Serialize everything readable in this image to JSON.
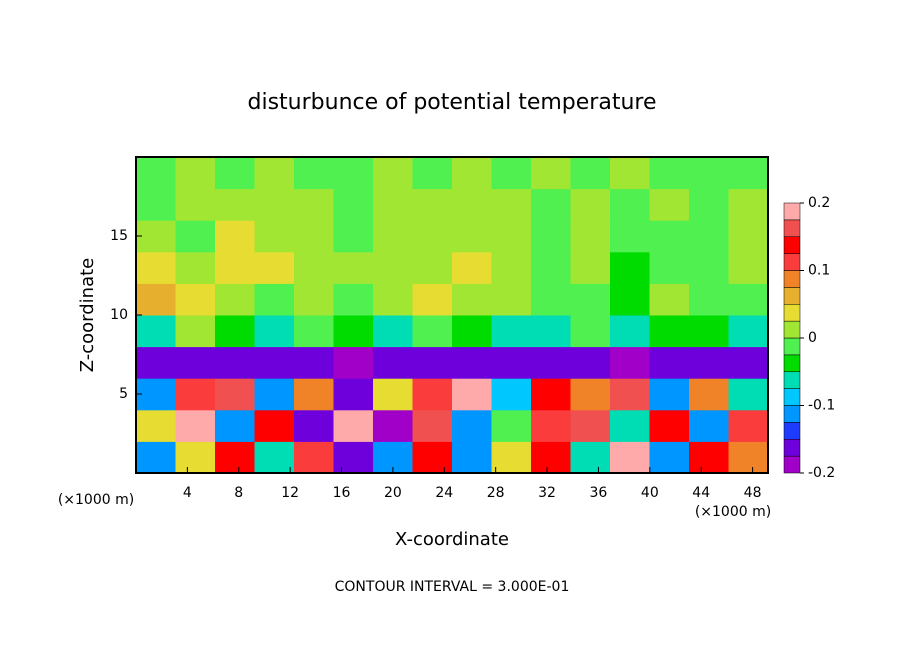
{
  "chart_data": {
    "type": "heatmap",
    "title": "disturbunce of potential temperature",
    "xlabel": "X-coordinate",
    "ylabel": "Z-coordinate",
    "x_unit": "(×1000 m)",
    "footer": "CONTOUR INTERVAL = 3.000E-01",
    "xlim": [
      0,
      49.2
    ],
    "ylim": [
      0,
      20
    ],
    "xticks": [
      4,
      8,
      12,
      16,
      20,
      24,
      28,
      32,
      36,
      40,
      44,
      48
    ],
    "yticks": [
      5,
      10,
      15
    ],
    "x": [
      1.54,
      4.61,
      7.69,
      10.76,
      13.84,
      16.91,
      19.99,
      23.06,
      26.14,
      29.21,
      32.29,
      35.36,
      38.44,
      41.51,
      44.59,
      47.66
    ],
    "z": [
      1,
      3,
      5,
      7,
      9,
      11,
      13,
      15,
      17,
      19
    ],
    "values": [
      [
        -0.12,
        0.05,
        0.15,
        -0.05,
        0.12,
        -0.15,
        -0.1,
        0.15,
        -0.12,
        0.05,
        0.15,
        -0.05,
        0.18,
        -0.1,
        0.15,
        0.1
      ],
      [
        0.05,
        0.18,
        -0.1,
        0.15,
        -0.15,
        0.19,
        -0.18,
        0.16,
        -0.1,
        0.0,
        0.12,
        0.17,
        -0.05,
        0.15,
        -0.1,
        0.12
      ],
      [
        -0.1,
        0.12,
        0.17,
        -0.12,
        0.1,
        -0.15,
        0.05,
        0.12,
        0.18,
        -0.08,
        0.15,
        0.1,
        0.17,
        -0.12,
        0.1,
        -0.05
      ],
      [
        -0.16,
        -0.17,
        -0.15,
        -0.16,
        -0.17,
        -0.18,
        -0.16,
        -0.17,
        -0.15,
        -0.16,
        -0.17,
        -0.15,
        -0.18,
        -0.17,
        -0.16,
        -0.17
      ],
      [
        -0.05,
        0.01,
        -0.03,
        -0.06,
        -0.02,
        -0.04,
        -0.06,
        0.0,
        -0.03,
        -0.07,
        -0.05,
        -0.02,
        -0.06,
        -0.03,
        -0.04,
        -0.06
      ],
      [
        0.06,
        0.03,
        0.02,
        0.0,
        0.01,
        -0.02,
        0.02,
        0.03,
        0.02,
        0.01,
        0.0,
        -0.02,
        -0.03,
        0.01,
        -0.02,
        0.0
      ],
      [
        0.03,
        0.01,
        0.04,
        0.03,
        0.02,
        0.01,
        0.02,
        0.01,
        0.03,
        0.02,
        0.0,
        0.01,
        -0.03,
        -0.01,
        -0.02,
        0.01
      ],
      [
        0.01,
        0.0,
        0.03,
        0.02,
        0.02,
        0.0,
        0.01,
        0.02,
        0.02,
        0.01,
        0.0,
        0.01,
        -0.02,
        -0.01,
        0.0,
        0.01
      ],
      [
        0.0,
        0.01,
        0.02,
        0.02,
        0.01,
        0.0,
        0.01,
        0.02,
        0.02,
        0.01,
        0.0,
        0.01,
        0.0,
        0.01,
        0.0,
        0.01
      ],
      [
        0.0,
        0.01,
        0.0,
        0.01,
        0.0,
        0.0,
        0.01,
        0.0,
        0.01,
        0.0,
        0.01,
        0.0,
        0.01,
        0.0,
        0.0,
        0.0
      ]
    ],
    "colorbar": {
      "lim": [
        -0.2,
        0.2
      ],
      "ticks": [
        -0.2,
        -0.1,
        0,
        0.1,
        0.2
      ],
      "levels": [
        -0.2,
        -0.175,
        -0.15,
        -0.125,
        -0.1,
        -0.075,
        -0.05,
        -0.025,
        0,
        0.025,
        0.05,
        0.075,
        0.1,
        0.125,
        0.15,
        0.175,
        0.2
      ],
      "colors": [
        "#a000c8",
        "#6e00dc",
        "#1e3cff",
        "#0096ff",
        "#00c8ff",
        "#00dcb4",
        "#00dc00",
        "#50f050",
        "#a0e632",
        "#e6dc32",
        "#e6af2d",
        "#f08228",
        "#fa3c3c",
        "#ff0000",
        "#f05050",
        "#ffaaaa"
      ]
    }
  }
}
